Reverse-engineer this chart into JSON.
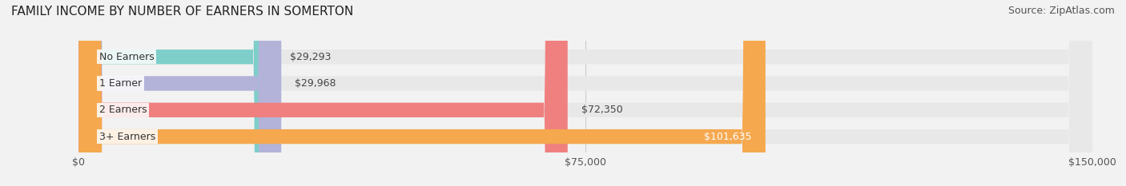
{
  "title": "FAMILY INCOME BY NUMBER OF EARNERS IN SOMERTON",
  "source": "Source: ZipAtlas.com",
  "categories": [
    "No Earners",
    "1 Earner",
    "2 Earners",
    "3+ Earners"
  ],
  "values": [
    29293,
    29968,
    72350,
    101635
  ],
  "bar_colors": [
    "#7ececa",
    "#b3b3d9",
    "#f08080",
    "#f5a84e"
  ],
  "label_colors": [
    "#444444",
    "#444444",
    "#444444",
    "#ffffff"
  ],
  "value_labels": [
    "$29,293",
    "$29,968",
    "$72,350",
    "$101,635"
  ],
  "xlim": [
    0,
    150000
  ],
  "xticks": [
    0,
    75000,
    150000
  ],
  "xtick_labels": [
    "$0",
    "$75,000",
    "$150,000"
  ],
  "background_color": "#f2f2f2",
  "bar_background_color": "#e8e8e8",
  "title_fontsize": 11,
  "source_fontsize": 9,
  "label_fontsize": 9,
  "value_fontsize": 9,
  "tick_fontsize": 9,
  "bar_height": 0.55
}
